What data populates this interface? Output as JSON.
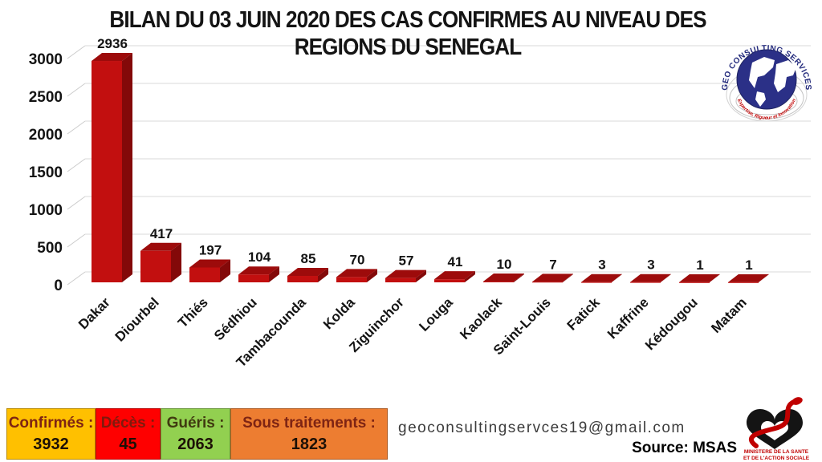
{
  "title": {
    "line1": "BILAN DU 03 JUIN 2020 DES CAS CONFIRMES AU NIVEAU DES",
    "line2": "REGIONS  DU SENEGAL"
  },
  "chart_data": {
    "type": "bar",
    "style": "3d",
    "title": "BILAN DU 03 JUIN 2020 DES CAS CONFIRMES AU NIVEAU DES REGIONS DU SENEGAL",
    "categories": [
      "Dakar",
      "Diourbel",
      "Thiés",
      "Sédhiou",
      "Tambacounda",
      "Kolda",
      "Ziguinchor",
      "Louga",
      "Kaolack",
      "Saint-Louis",
      "Fatick",
      "Kaffrine",
      "Kédougou",
      "Matam"
    ],
    "values": [
      2936,
      417,
      197,
      104,
      85,
      70,
      57,
      41,
      10,
      7,
      3,
      3,
      1,
      1
    ],
    "xlabel": "",
    "ylabel": "",
    "ylim": [
      0,
      3000
    ],
    "yticks": [
      0,
      500,
      1000,
      1500,
      2000,
      2500,
      3000
    ],
    "grid": "horizontal",
    "legend": "none"
  },
  "colors": {
    "bar_front": "#c20f0f",
    "bar_top": "#9d0b0b",
    "bar_side": "#830909",
    "grid": "#d9d9d9",
    "connector": "#cccccc",
    "title_text": "#141414",
    "navy": "#232a7c",
    "logo_red": "#c00000"
  },
  "geo_logo": {
    "arc_text": "GEO CONSULTING SERVICES",
    "tagline": "Expertise, Rigueur et Innovation"
  },
  "stats": [
    {
      "label": "Confirmés :",
      "value": "3932",
      "bg": "#FFC000",
      "label_color": "#7e2413",
      "value_color": "#1d1006"
    },
    {
      "label": "Décès :",
      "value": "45",
      "bg": "#FE0000",
      "label_color": "#7e1a0d",
      "value_color": "#1d1006"
    },
    {
      "label": "Guéris :",
      "value": "2063",
      "bg": "#92D050",
      "label_color": "#403a10",
      "value_color": "#1d1006"
    },
    {
      "label": "Sous traitements :",
      "value": "1823",
      "bg": "#ED7D31",
      "label_color": "#7e2413",
      "value_color": "#1d1006"
    }
  ],
  "footer": {
    "email": "geoconsultingservces19@gmail.com",
    "source_label": "Source: MSAS"
  },
  "ministry_logo": {
    "line1": "MINISTERE DE LA SANTE",
    "line2": "ET DE L'ACTION SOCIALE"
  }
}
